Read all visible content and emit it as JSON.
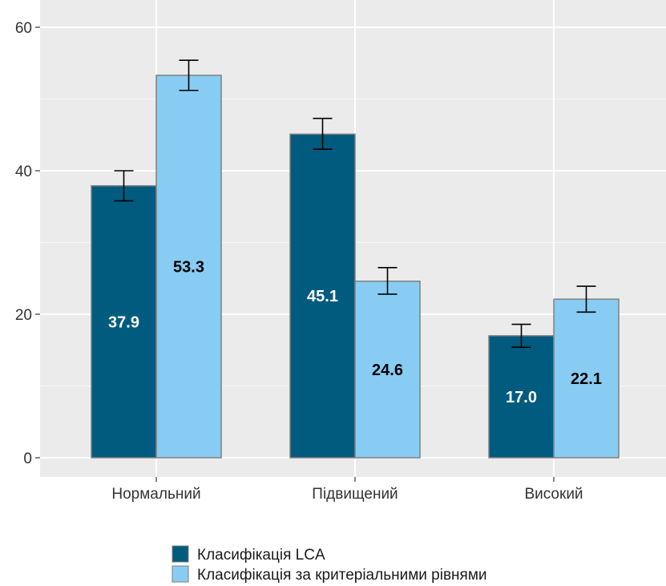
{
  "chart_data": {
    "type": "bar",
    "title": "",
    "xlabel": "",
    "ylabel": "",
    "ylim": [
      0,
      62
    ],
    "yticks": [
      0,
      20,
      40,
      60
    ],
    "grid": true,
    "legend_position": "bottom",
    "categories": [
      "Нормальний",
      "Підвищений",
      "Високий"
    ],
    "series": [
      {
        "name": "Класифікація LCA",
        "color": "#005b7f",
        "label_color": "#ffffff",
        "values": [
          37.9,
          45.1,
          17.0
        ],
        "labels": [
          "37.9",
          "45.1",
          "17.0"
        ],
        "error_low": [
          35.8,
          43.0,
          15.4
        ],
        "error_high": [
          40.0,
          47.3,
          18.6
        ]
      },
      {
        "name": "Класифікація за критеріальними рівнями",
        "color": "#88ccf3",
        "label_color": "#000000",
        "values": [
          53.3,
          24.6,
          22.1
        ],
        "labels": [
          "53.3",
          "24.6",
          "22.1"
        ],
        "error_low": [
          51.2,
          22.8,
          20.3
        ],
        "error_high": [
          55.4,
          26.5,
          23.9
        ]
      }
    ]
  }
}
